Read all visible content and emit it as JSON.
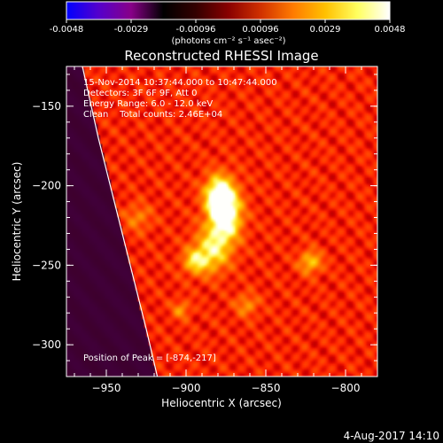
{
  "colorbar": {
    "ticks": [
      "-0.0048",
      "-0.0029",
      "-0.00096",
      "0.00096",
      "0.0029",
      "0.0048"
    ],
    "unit_label": "(photons cm⁻² s⁻¹ asec⁻²)",
    "colors": [
      "#0000ff",
      "#5500cc",
      "#880088",
      "#000000",
      "#330000",
      "#880000",
      "#d03000",
      "#ff7a00",
      "#ffc000",
      "#ffff60",
      "#ffffff"
    ]
  },
  "chart_data": {
    "type": "heatmap",
    "title": "Reconstructed RHESSI Image",
    "xlabel": "Heliocentric X (arcsec)",
    "ylabel": "Heliocentric Y (arcsec)",
    "xlim": [
      -975,
      -780
    ],
    "ylim": [
      -320,
      -125
    ],
    "xticks": [
      -950,
      -900,
      -850,
      -800
    ],
    "yticks": [
      -150,
      -200,
      -250,
      -300
    ],
    "xtick_labels": [
      "−950",
      "−900",
      "−850",
      "−800"
    ],
    "ytick_labels": [
      "−150",
      "−200",
      "−250",
      "−300"
    ],
    "info_lines": [
      "15-Nov-2014 10:37:44.000 to 10:47:44.000",
      "Detectors: 3F 6F 9F, Att 0",
      "Energy Range: 6.0 - 12.0 keV",
      "Clean    Total counts: 2.46E+04"
    ],
    "peak_label": "Position of Peak = [-874,-217]",
    "peak": [
      -874,
      -217
    ],
    "sources": [
      {
        "x": -876,
        "y": -218,
        "amp": 1.0,
        "sx": 7,
        "sy": 12
      },
      {
        "x": -880,
        "y": -205,
        "amp": 0.6,
        "sx": 6,
        "sy": 8
      },
      {
        "x": -885,
        "y": -242,
        "amp": 0.55,
        "sx": 8,
        "sy": 9
      },
      {
        "x": -895,
        "y": -248,
        "amp": 0.4,
        "sx": 5,
        "sy": 5
      },
      {
        "x": -822,
        "y": -248,
        "amp": 0.45,
        "sx": 5,
        "sy": 5
      },
      {
        "x": -903,
        "y": -278,
        "amp": 0.3,
        "sx": 4,
        "sy": 4
      },
      {
        "x": -862,
        "y": -275,
        "amp": 0.3,
        "sx": 5,
        "sy": 5
      },
      {
        "x": -930,
        "y": -220,
        "amp": 0.25,
        "sx": 6,
        "sy": 6
      }
    ],
    "limb_arc": [
      [
        -965,
        -125
      ],
      [
        -955,
        -170
      ],
      [
        -945,
        -210
      ],
      [
        -935,
        -250
      ],
      [
        -925,
        -290
      ],
      [
        -918,
        -320
      ]
    ],
    "timestamp": "4-Aug-2017 14:10"
  }
}
